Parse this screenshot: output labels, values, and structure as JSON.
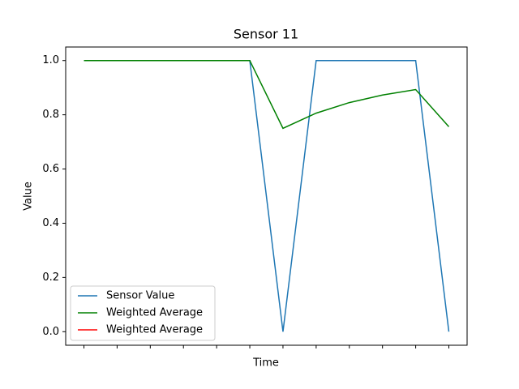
{
  "chart_data": {
    "type": "line",
    "title": "Sensor 11",
    "xlabel": "Time",
    "ylabel": "Value",
    "x": [
      0,
      1,
      2,
      3,
      4,
      5,
      6,
      7,
      8,
      9,
      10,
      11
    ],
    "series": [
      {
        "name": "Sensor Value",
        "color": "#1f77b4",
        "values": [
          1,
          1,
          1,
          1,
          1,
          1,
          0,
          1,
          1,
          1,
          1,
          0
        ]
      },
      {
        "name": "Weighted Average",
        "color": "#008000",
        "values": [
          1,
          1,
          1,
          1,
          1,
          1,
          0.75,
          0.806,
          0.845,
          0.873,
          0.893,
          0.756
        ]
      },
      {
        "name": "Weighted Average",
        "color": "#ff0000",
        "values": [
          null,
          null,
          null,
          null,
          null,
          null,
          null,
          null,
          null,
          null,
          null,
          null
        ]
      }
    ],
    "xlim": [
      -0.55,
      11.55
    ],
    "xticks": [
      0,
      1,
      2,
      3,
      4,
      5,
      6,
      7,
      8,
      9,
      10,
      11
    ],
    "ylim": [
      -0.05,
      1.05
    ],
    "yticks": [
      {
        "value": 0,
        "label": "0.0"
      },
      0.2,
      0.4,
      0.6,
      0.8,
      {
        "value": 1,
        "label": "1.0"
      }
    ],
    "legend": "lower left",
    "grid": false
  }
}
